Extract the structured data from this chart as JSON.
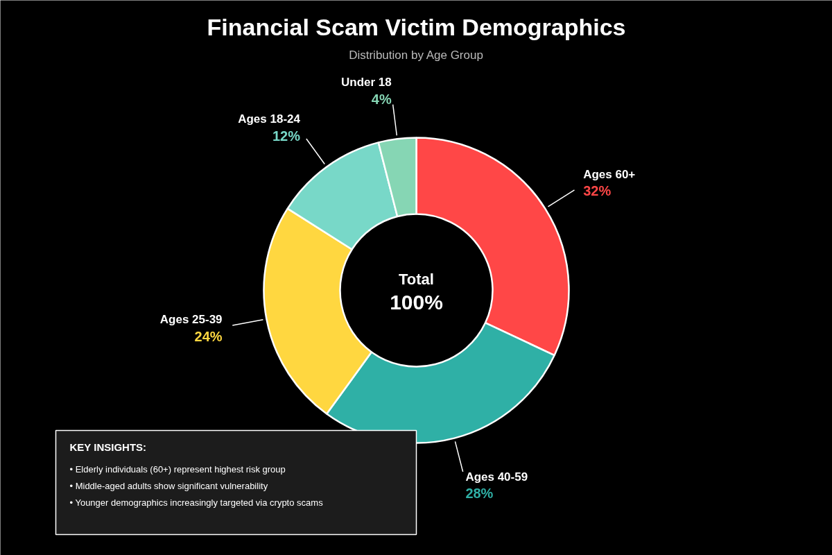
{
  "chart_data": {
    "type": "donut",
    "title": "Financial Scam Victim Demographics",
    "subtitle": "Distribution by Age Group",
    "categories": [
      "Ages 60+",
      "Ages 40-59",
      "Ages 25-39",
      "Ages 18-24",
      "Under 18"
    ],
    "values": [
      32,
      28,
      24,
      12,
      4
    ],
    "colors": [
      "#ff4747",
      "#2fb0a6",
      "#ffd740",
      "#78d8c8",
      "#86d6b4"
    ],
    "value_labels": [
      "32%",
      "28%",
      "24%",
      "12%",
      "4%"
    ],
    "annotations": [
      "Total",
      "100%",
      "KEY INSIGHTS:",
      "• Elderly individuals (60+) represent highest risk group",
      "• Middle-aged adults show significant vulnerability",
      "• Younger demographics increasingly targeted via crypto scams"
    ]
  }
}
